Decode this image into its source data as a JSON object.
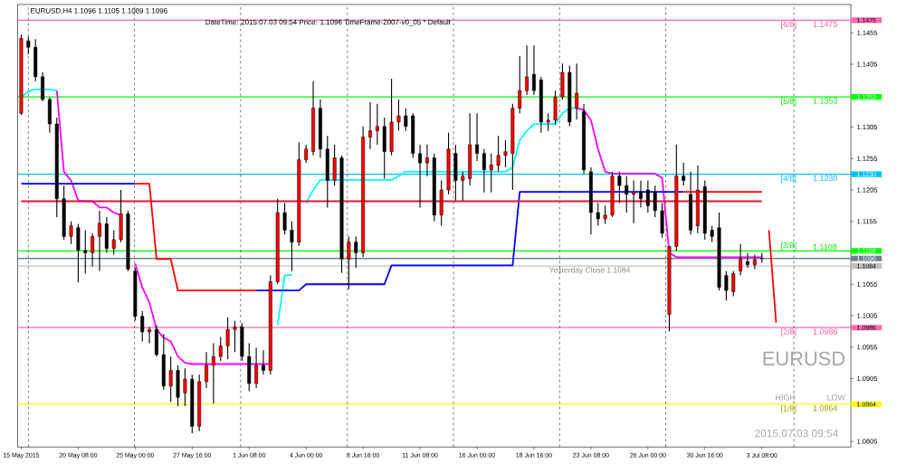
{
  "chart_data": {
    "type": "candlestick",
    "title": "EURUSD,H4  1.1096 1.1105 1.1089 1.1096",
    "subtitle": "DateTime: 2015.07.03 09:54    Price: 1.1096    TimeFrame-2007-v0_05    *    Default",
    "categories": [
      "15 May 2015",
      null,
      null,
      null,
      null,
      null,
      null,
      null,
      "20 May 08:00",
      null,
      null,
      null,
      null,
      null,
      null,
      null,
      "25 May 00:00",
      null,
      null,
      null,
      null,
      null,
      null,
      null,
      "27 May 16:00",
      null,
      null,
      null,
      null,
      null,
      null,
      null,
      "1 Jun 08:00",
      null,
      null,
      null,
      null,
      null,
      null,
      null,
      "4 Jun 00:00",
      null,
      null,
      null,
      null,
      null,
      null,
      null,
      "8 Jun 16:00",
      null,
      null,
      null,
      null,
      null,
      null,
      null,
      "11 Jun 08:00",
      null,
      null,
      null,
      null,
      null,
      null,
      null,
      "16 Jun 00:00",
      null,
      null,
      null,
      null,
      null,
      null,
      null,
      "18 Jun 16:00",
      null,
      null,
      null,
      null,
      null,
      null,
      null,
      "23 Jun 08:00",
      null,
      null,
      null,
      null,
      null,
      null,
      null,
      "26 Jun 00:00",
      null,
      null,
      null,
      null,
      null,
      null,
      null,
      "30 Jun 16:00",
      null,
      null,
      null,
      null,
      null,
      null,
      null,
      "3 Jul 08:00",
      null,
      null,
      null,
      null,
      null,
      null,
      null,
      null,
      null,
      null,
      null,
      null
    ],
    "ohlc": [
      [
        1.1327,
        1.1452,
        1.1324,
        1.1446
      ],
      [
        1.1442,
        1.1449,
        1.1421,
        1.1432
      ],
      [
        1.1432,
        1.1445,
        1.1378,
        1.1385
      ],
      [
        1.1385,
        1.1392,
        1.1346,
        1.1349
      ],
      [
        1.1349,
        1.1352,
        1.1296,
        1.131
      ],
      [
        1.131,
        1.132,
        1.1162,
        1.1191
      ],
      [
        1.1191,
        1.1212,
        1.1126,
        1.1131
      ],
      [
        1.1131,
        1.1155,
        1.1119,
        1.1148
      ],
      [
        1.1145,
        1.1151,
        1.1058,
        1.1109
      ],
      [
        1.1109,
        1.1141,
        1.1072,
        1.1105
      ],
      [
        1.1105,
        1.1136,
        1.1083,
        1.1131
      ],
      [
        1.1131,
        1.1172,
        1.1076,
        1.1152
      ],
      [
        1.1151,
        1.1162,
        1.1105,
        1.1112
      ],
      [
        1.1112,
        1.1141,
        1.1102,
        1.1126
      ],
      [
        1.1126,
        1.1205,
        1.1122,
        1.1167
      ],
      [
        1.1167,
        1.1172,
        1.1076,
        1.1079
      ],
      [
        1.1076,
        1.1081,
        1.0997,
        1.1004
      ],
      [
        1.1004,
        1.1012,
        1.0964,
        1.0979
      ],
      [
        1.0979,
        1.0987,
        1.0961,
        1.0983
      ],
      [
        1.0983,
        1.099,
        1.094,
        1.0943
      ],
      [
        1.0943,
        1.0976,
        1.0887,
        1.0893
      ],
      [
        1.0893,
        1.094,
        1.0868,
        1.0918
      ],
      [
        1.0918,
        1.0926,
        1.0861,
        1.0875
      ],
      [
        1.0882,
        1.0921,
        1.0861,
        1.0904
      ],
      [
        1.0904,
        1.0911,
        1.0818,
        1.0829
      ],
      [
        1.0829,
        1.0911,
        1.0821,
        1.09
      ],
      [
        1.09,
        1.0947,
        1.089,
        1.0926
      ],
      [
        1.0926,
        1.0961,
        1.0865,
        1.094
      ],
      [
        1.094,
        1.0971,
        1.0933,
        1.0957
      ],
      [
        1.0957,
        1.1002,
        1.0936,
        1.0983
      ],
      [
        1.0983,
        1.0997,
        1.0947,
        1.0987
      ],
      [
        1.0987,
        1.0993,
        1.0933,
        1.094
      ],
      [
        1.094,
        1.0961,
        1.0885,
        1.0897
      ],
      [
        1.0897,
        1.0954,
        1.089,
        1.0926
      ],
      [
        1.0926,
        1.095,
        1.0911,
        1.0918
      ],
      [
        1.0918,
        1.1069,
        1.0911,
        1.1059
      ],
      [
        1.1059,
        1.1191,
        1.1055,
        1.1169
      ],
      [
        1.1169,
        1.1184,
        1.1134,
        1.1141
      ],
      [
        1.1141,
        1.1155,
        1.1076,
        1.1122
      ],
      [
        1.1122,
        1.1281,
        1.1116,
        1.1253
      ],
      [
        1.1253,
        1.1277,
        1.1248,
        1.127
      ],
      [
        1.1266,
        1.1378,
        1.126,
        1.1335
      ],
      [
        1.1335,
        1.1349,
        1.1256,
        1.127
      ],
      [
        1.127,
        1.1291,
        1.1177,
        1.122
      ],
      [
        1.122,
        1.1277,
        1.1212,
        1.1256
      ],
      [
        1.1256,
        1.126,
        1.1073,
        1.1095
      ],
      [
        1.1095,
        1.1131,
        1.1047,
        1.1122
      ],
      [
        1.1122,
        1.1131,
        1.1081,
        1.1105
      ],
      [
        1.1105,
        1.1306,
        1.1098,
        1.1289
      ],
      [
        1.1289,
        1.1345,
        1.127,
        1.1299
      ],
      [
        1.1299,
        1.1342,
        1.1277,
        1.1306
      ],
      [
        1.1306,
        1.132,
        1.1223,
        1.1266
      ],
      [
        1.1266,
        1.1382,
        1.126,
        1.1313
      ],
      [
        1.1313,
        1.1349,
        1.1299,
        1.1323
      ],
      [
        1.1323,
        1.1335,
        1.1299,
        1.1306
      ],
      [
        1.1323,
        1.1327,
        1.1256,
        1.1263
      ],
      [
        1.1263,
        1.1277,
        1.1177,
        1.1248
      ],
      [
        1.1248,
        1.1277,
        1.1227,
        1.1256
      ],
      [
        1.1256,
        1.1263,
        1.1155,
        1.1165
      ],
      [
        1.1165,
        1.122,
        1.1148,
        1.1205
      ],
      [
        1.1205,
        1.1296,
        1.1198,
        1.127
      ],
      [
        1.1263,
        1.1277,
        1.1188,
        1.122
      ],
      [
        1.122,
        1.1234,
        1.1188,
        1.1227
      ],
      [
        1.1223,
        1.1327,
        1.1212,
        1.1277
      ],
      [
        1.1277,
        1.1327,
        1.1251,
        1.1263
      ],
      [
        1.1263,
        1.127,
        1.1201,
        1.1237
      ],
      [
        1.1237,
        1.1263,
        1.1201,
        1.1245
      ],
      [
        1.1244,
        1.1291,
        1.1234,
        1.126
      ],
      [
        1.126,
        1.1284,
        1.1241,
        1.1266
      ],
      [
        1.1263,
        1.1342,
        1.1205,
        1.1335
      ],
      [
        1.1335,
        1.1418,
        1.1327,
        1.1363
      ],
      [
        1.1363,
        1.1435,
        1.1356,
        1.1385
      ],
      [
        1.1389,
        1.1435,
        1.1356,
        1.1363
      ],
      [
        1.138,
        1.1385,
        1.1296,
        1.1313
      ],
      [
        1.1313,
        1.1327,
        1.1299,
        1.1316
      ],
      [
        1.1316,
        1.1363,
        1.1309,
        1.1353
      ],
      [
        1.1353,
        1.1406,
        1.1349,
        1.1392
      ],
      [
        1.1392,
        1.1403,
        1.1306,
        1.1313
      ],
      [
        1.1335,
        1.1406,
        1.1317,
        1.1359
      ],
      [
        1.133,
        1.1342,
        1.1231,
        1.1237
      ],
      [
        1.1234,
        1.1241,
        1.1134,
        1.1169
      ],
      [
        1.1169,
        1.1184,
        1.1148,
        1.1159
      ],
      [
        1.1159,
        1.118,
        1.1151,
        1.1165
      ],
      [
        1.1165,
        1.1234,
        1.1162,
        1.1227
      ],
      [
        1.1227,
        1.1234,
        1.1184,
        1.1212
      ],
      [
        1.1212,
        1.1227,
        1.1169,
        1.1198
      ],
      [
        1.1198,
        1.122,
        1.1152,
        1.1202
      ],
      [
        1.1202,
        1.122,
        1.1177,
        1.1191
      ],
      [
        1.1205,
        1.122,
        1.1169,
        1.118
      ],
      [
        1.1202,
        1.1212,
        1.1162,
        1.1172
      ],
      [
        1.1172,
        1.1184,
        1.1129,
        1.1136
      ],
      [
        1.1007,
        1.1116,
        1.098,
        1.1115
      ],
      [
        1.1115,
        1.1277,
        1.1108,
        1.1227
      ],
      [
        1.1227,
        1.1248,
        1.1212,
        1.122
      ],
      [
        1.1198,
        1.1234,
        1.1134,
        1.1141
      ],
      [
        1.1148,
        1.1244,
        1.1136,
        1.1205
      ],
      [
        1.121,
        1.122,
        1.1126,
        1.1136
      ],
      [
        1.1141,
        1.1148,
        1.1122,
        1.1131
      ],
      [
        1.1145,
        1.1169,
        1.1045,
        1.105
      ],
      [
        1.1069,
        1.1076,
        1.1029,
        1.1045
      ],
      [
        1.1043,
        1.1076,
        1.1036,
        1.1072
      ],
      [
        1.1076,
        1.1119,
        1.1069,
        1.1095
      ],
      [
        1.1091,
        1.1105,
        1.1081,
        1.1086
      ],
      [
        1.1086,
        1.1102,
        1.1079,
        1.1094
      ],
      [
        1.1096,
        1.1105,
        1.1089,
        1.1096
      ],
      null,
      null,
      null,
      null,
      null,
      null,
      null,
      null,
      null,
      null,
      null,
      null
    ],
    "series": [
      {
        "type": "line",
        "color": "#00ffff",
        "values": [
          1.1352,
          1.1362,
          1.1365,
          1.1365,
          1.1365,
          1.1363,
          null,
          null,
          null,
          null,
          null,
          null,
          null,
          null,
          null,
          null,
          null,
          null,
          null,
          null,
          null,
          null,
          null,
          null,
          null,
          null,
          null,
          null,
          null,
          null,
          null,
          null,
          null,
          null,
          null,
          null,
          1.099,
          1.1069,
          1.107,
          null,
          1.1184,
          1.1205,
          1.1221,
          1.1221,
          1.1221,
          1.1221,
          1.1221,
          1.1221,
          1.1221,
          1.1221,
          1.1221,
          1.1221,
          1.1221,
          1.1227,
          1.1234,
          1.1234,
          1.1234,
          1.1234,
          1.1234,
          1.1234,
          1.1234,
          1.1234,
          1.1234,
          1.1234,
          1.1234,
          1.1234,
          1.1234,
          1.1234,
          1.1234,
          1.1241,
          1.1284,
          1.1299,
          1.131,
          1.131,
          1.131,
          1.131,
          1.1327,
          1.1335,
          1.1335,
          null,
          null,
          null,
          null,
          null,
          null,
          null,
          null,
          null,
          null,
          null,
          null,
          null,
          null,
          null,
          null,
          null,
          null,
          null,
          null,
          null,
          null,
          null,
          null,
          null,
          null,
          null,
          null,
          null,
          null,
          null,
          null,
          null,
          null,
          null,
          null,
          null,
          null
        ]
      },
      {
        "type": "line",
        "color": "#ff00ff",
        "values": [
          null,
          null,
          null,
          null,
          null,
          1.1363,
          1.1234,
          1.122,
          1.1188,
          1.1187,
          1.1187,
          1.1177,
          1.1177,
          1.1169,
          1.1165,
          null,
          1.1088,
          1.105,
          1.1026,
          1.0983,
          1.097,
          1.0964,
          1.094,
          1.093,
          1.0928,
          1.0928,
          1.0928,
          1.0928,
          1.0928,
          1.0928,
          1.0928,
          1.0928,
          1.0928,
          1.0928,
          1.0928,
          1.0928,
          null,
          null,
          null,
          null,
          null,
          null,
          null,
          null,
          null,
          null,
          null,
          null,
          null,
          null,
          null,
          null,
          null,
          null,
          null,
          null,
          null,
          null,
          null,
          null,
          null,
          null,
          null,
          null,
          null,
          null,
          null,
          null,
          null,
          null,
          null,
          null,
          null,
          null,
          null,
          null,
          null,
          null,
          1.1335,
          1.1332,
          1.1316,
          1.127,
          1.1234,
          1.1231,
          1.1231,
          1.1231,
          1.1231,
          1.1231,
          1.1231,
          1.1231,
          1.1224,
          1.1105,
          1.1098,
          1.1098,
          1.1098,
          1.1098,
          1.1098,
          1.1098,
          1.1098,
          1.1098,
          1.1098,
          1.1098,
          1.1098,
          1.1098,
          1.1098,
          null,
          null,
          null,
          null,
          null,
          null,
          null,
          null,
          null,
          null,
          null,
          null
        ]
      },
      {
        "type": "line",
        "color": "#0000ff",
        "values": [
          1.1215,
          1.1215,
          1.1215,
          1.1215,
          1.1215,
          1.1215,
          1.1215,
          1.1215,
          1.1215,
          1.1215,
          1.1215,
          1.1215,
          1.1215,
          1.1215,
          1.1215,
          1.1215,
          1.1215,
          null,
          null,
          null,
          null,
          null,
          null,
          null,
          null,
          null,
          null,
          null,
          null,
          null,
          null,
          null,
          null,
          1.1045,
          1.1045,
          1.1045,
          1.1045,
          1.1045,
          1.1045,
          1.1045,
          1.1055,
          1.1055,
          1.1055,
          1.1055,
          1.1055,
          1.1055,
          1.1055,
          1.1055,
          1.1055,
          1.1055,
          1.1055,
          1.1055,
          1.1085,
          1.1085,
          1.1085,
          1.1085,
          1.1085,
          1.1085,
          1.1085,
          1.1085,
          1.1085,
          1.1085,
          1.1085,
          1.1085,
          1.1085,
          1.1085,
          1.1085,
          1.1085,
          1.1085,
          1.1085,
          1.1202,
          1.1202,
          1.1202,
          1.1202,
          1.1202,
          1.1202,
          1.1202,
          1.1202,
          1.1202,
          1.1202,
          1.1202,
          1.1202,
          1.1202,
          1.1202,
          1.1202,
          1.1202,
          1.1202,
          1.1202,
          1.1202,
          1.1202,
          1.1202,
          1.1202,
          1.1202,
          1.1202,
          null,
          null,
          null,
          null,
          null,
          null,
          null,
          null,
          null,
          null,
          null,
          null,
          null,
          null,
          null,
          null,
          null,
          null,
          null,
          null,
          null,
          null,
          null
        ]
      },
      {
        "type": "line",
        "color": "#ff0000",
        "values": [
          null,
          null,
          null,
          null,
          null,
          null,
          null,
          null,
          null,
          null,
          null,
          null,
          null,
          null,
          null,
          null,
          1.1215,
          1.1215,
          1.1215,
          1.1095,
          1.1095,
          1.1095,
          1.1045,
          1.1045,
          1.1045,
          1.1045,
          1.1045,
          1.1045,
          1.1045,
          1.1045,
          1.1045,
          1.1045,
          1.1045,
          1.1045,
          null,
          null,
          null,
          null,
          null,
          null,
          null,
          null,
          null,
          null,
          null,
          null,
          null,
          null,
          null,
          null,
          null,
          null,
          null,
          null,
          null,
          null,
          null,
          null,
          null,
          null,
          null,
          null,
          null,
          null,
          null,
          null,
          null,
          null,
          null,
          null,
          null,
          null,
          null,
          null,
          null,
          null,
          null,
          null,
          null,
          null,
          null,
          null,
          null,
          null,
          null,
          null,
          null,
          null,
          null,
          null,
          null,
          null,
          null,
          1.1202,
          1.1202,
          1.1202,
          1.1202,
          1.1202,
          1.1202,
          1.1202,
          1.1202,
          1.1202,
          1.1202,
          1.1202,
          1.1202,
          null,
          null,
          null,
          null,
          null,
          null,
          null,
          null,
          null,
          null,
          null,
          null
        ]
      },
      {
        "type": "line",
        "color": "#dc143c",
        "values": [
          1.1187,
          1.1187,
          1.1187,
          1.1187,
          1.1187,
          1.1187,
          1.1187,
          1.1187,
          1.1187,
          1.1187,
          1.1187,
          1.1187,
          1.1187,
          1.1187,
          1.1187,
          1.1187,
          1.1187,
          1.1187,
          1.1187,
          1.1187,
          1.1187,
          1.1187,
          1.1187,
          1.1187,
          1.1187,
          1.1187,
          1.1187,
          1.1187,
          1.1187,
          1.1187,
          1.1187,
          1.1187,
          1.1187,
          1.1187,
          1.1187,
          1.1187,
          1.1187,
          1.1187,
          1.1187,
          1.1187,
          1.1187,
          1.1187,
          1.1187,
          1.1187,
          1.1187,
          1.1187,
          1.1187,
          1.1187,
          1.1187,
          1.1187,
          1.1187,
          1.1187,
          1.1187,
          1.1187,
          1.1187,
          1.1187,
          1.1187,
          1.1187,
          1.1187,
          1.1187,
          1.1187,
          1.1187,
          1.1187,
          1.1187,
          1.1187,
          1.1187,
          1.1187,
          1.1187,
          1.1187,
          1.1187,
          1.1187,
          1.1187,
          1.1187,
          1.1187,
          1.1187,
          1.1187,
          1.1187,
          1.1187,
          1.1187,
          1.1187,
          1.1187,
          1.1187,
          1.1187,
          1.1187,
          1.1187,
          1.1187,
          1.1187,
          1.1187,
          1.1187,
          1.1187,
          1.1187,
          1.1187,
          1.1187,
          1.1187,
          1.1187,
          1.1187,
          1.1187,
          1.1187,
          1.1187,
          1.1187,
          1.1187,
          1.1187,
          1.1187,
          1.1187,
          1.1187,
          null,
          null,
          null,
          null,
          null,
          null,
          null,
          null,
          null,
          null,
          null,
          null
        ]
      },
      {
        "type": "line",
        "color": "#ff0000",
        "values": [
          null,
          null,
          null,
          null,
          null,
          null,
          null,
          null,
          null,
          null,
          null,
          null,
          null,
          null,
          null,
          null,
          null,
          null,
          null,
          null,
          null,
          null,
          null,
          null,
          null,
          null,
          null,
          null,
          null,
          null,
          null,
          null,
          null,
          null,
          null,
          null,
          null,
          null,
          null,
          null,
          null,
          null,
          null,
          null,
          null,
          null,
          null,
          null,
          null,
          null,
          null,
          null,
          null,
          null,
          null,
          null,
          null,
          null,
          null,
          null,
          null,
          null,
          null,
          null,
          null,
          null,
          null,
          null,
          null,
          null,
          null,
          null,
          null,
          null,
          null,
          null,
          null,
          null,
          null,
          null,
          null,
          null,
          null,
          null,
          null,
          null,
          null,
          null,
          null,
          null,
          null,
          null,
          null,
          null,
          null,
          null,
          null,
          null,
          null,
          null,
          null,
          null,
          null,
          null,
          null,
          1.1141,
          1.0994,
          null,
          null,
          null,
          null,
          null,
          null,
          null,
          null,
          null,
          null
        ]
      }
    ],
    "ylim": [
      1.0796,
      1.15
    ],
    "yticks": [
      1.0805,
      1.0905,
      1.0955,
      1.1005,
      1.1055,
      1.1155,
      1.1205,
      1.1255,
      1.1305,
      1.1405,
      1.1455,
      {
        "value": 1.1475,
        "label": "1.1475"
      },
      {
        "value": 1.1353,
        "label": "1.1353"
      },
      {
        "value": 1.123,
        "label": "1.1230"
      },
      {
        "value": 1.1108,
        "label": "1.1108"
      },
      {
        "value": 1.1096,
        "label": "1.1096"
      },
      {
        "value": 1.1084,
        "label": "1.1084"
      },
      {
        "value": 1.0986,
        "label": "1.0986"
      },
      {
        "value": 1.0864,
        "label": "1.0864"
      }
    ],
    "ref_lines": [
      {
        "axis": "y",
        "value": 1.1475,
        "color": "#ff69b4"
      },
      {
        "axis": "y",
        "value": 1.1353,
        "color": "#00ff00"
      },
      {
        "axis": "y",
        "value": 1.123,
        "color": "#00bfff"
      },
      {
        "axis": "y",
        "value": 1.1108,
        "color": "#00ff00"
      },
      {
        "axis": "y",
        "value": 1.1096,
        "color": "#708090"
      },
      {
        "axis": "y",
        "value": 1.1084,
        "label": "Yesterday Close 1.1084",
        "color": "#c0c0c0"
      },
      {
        "axis": "y",
        "value": 1.0986,
        "color": "#ff69b4"
      },
      {
        "axis": "y",
        "value": 1.0864,
        "color": "#ffff00"
      }
    ],
    "annotations": [
      {
        "text": "[6/8]",
        "y": 1.1475
      },
      {
        "text": "[5/8]",
        "y": 1.1353
      },
      {
        "text": "[4/8]",
        "y": 1.123
      },
      {
        "text": "[3/8]",
        "y": 1.1108
      },
      {
        "text": "[2/8]",
        "y": 1.0986
      },
      {
        "text": "[1/8]",
        "y": 1.0864
      },
      {
        "text": "1.1475",
        "y": 1.1475
      },
      {
        "text": "1.1353",
        "y": 1.1353
      },
      {
        "text": "1.1230",
        "y": 1.123
      },
      {
        "text": "1.1108",
        "y": 1.1108
      },
      {
        "text": "1.0986",
        "y": 1.0986
      },
      {
        "text": "1.0864",
        "y": 1.0864
      },
      "EURUSD",
      "HIGH",
      "LOW",
      "2015.07.03 09:54"
    ]
  }
}
